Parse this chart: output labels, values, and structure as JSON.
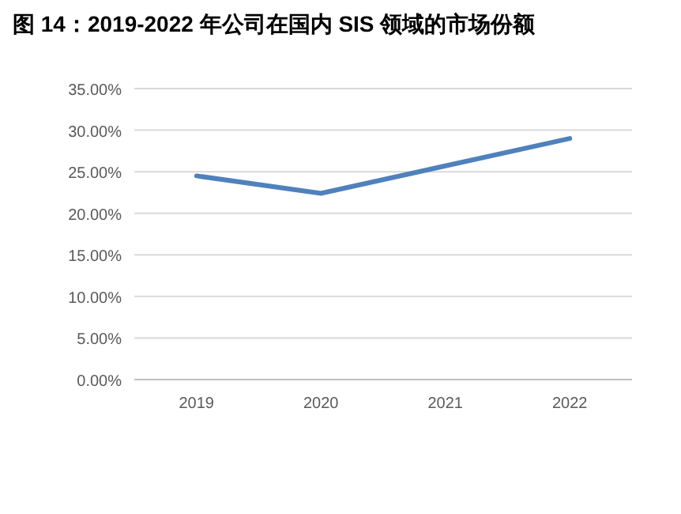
{
  "chart_data": {
    "type": "line",
    "title": "图 14：2019-2022 年公司在国内 SIS 领域的市场份额",
    "categories": [
      "2019",
      "2020",
      "2021",
      "2022"
    ],
    "series": [
      {
        "color": "#4f81bd",
        "values": [
          24.5,
          22.4,
          25.7,
          29.0
        ]
      }
    ],
    "ylim": [
      0,
      35
    ],
    "yticks": [
      {
        "value": 0,
        "label": "0.00%"
      },
      {
        "value": 5,
        "label": "5.00%"
      },
      {
        "value": 10,
        "label": "10.00%"
      },
      {
        "value": 15,
        "label": "15.00%"
      },
      {
        "value": 20,
        "label": "20.00%"
      },
      {
        "value": 25,
        "label": "25.00%"
      },
      {
        "value": 30,
        "label": "30.00%"
      },
      {
        "value": 35,
        "label": "35.00%"
      }
    ],
    "grid": "y",
    "marker": "none",
    "line_style": "solid"
  }
}
